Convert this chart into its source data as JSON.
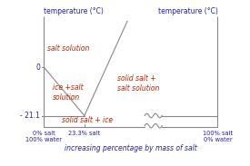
{
  "title_left": "temperature (°C)",
  "title_right": "temperature (°C)",
  "xlabel": "increasing percentage by mass of salt",
  "bg_color": "#ffffff",
  "line_color": "#888888",
  "text_color_red": "#cc2200",
  "text_color_blue": "#2222aa",
  "left_line": {
    "x": [
      0.0,
      0.233
    ],
    "y": [
      0.0,
      -21.1
    ]
  },
  "right_line": {
    "x": [
      0.233,
      0.48
    ],
    "y": [
      -21.1,
      20.0
    ]
  },
  "horizontal_line_left": {
    "x": [
      0.0,
      0.233
    ],
    "y": [
      -21.1,
      -21.1
    ]
  },
  "horizontal_line_right": {
    "x": [
      0.233,
      1.0
    ],
    "y": [
      -21.1,
      -21.1
    ]
  },
  "bottom_line": {
    "x": [
      0.0,
      1.0
    ],
    "y": [
      -26.0,
      -26.0
    ]
  },
  "ylim": [
    -30,
    22
  ],
  "xlim": [
    -0.08,
    1.1
  ]
}
